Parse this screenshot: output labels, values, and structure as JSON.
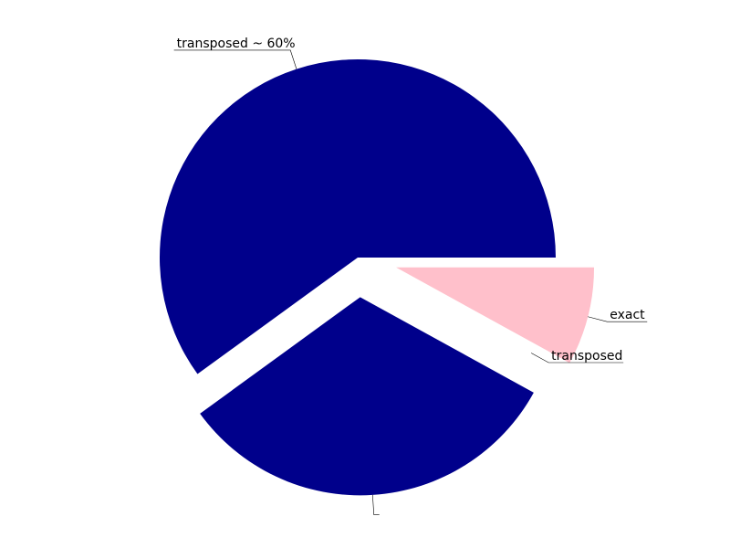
{
  "chart_data": {
    "type": "pie",
    "title": "",
    "start_angle_deg": 0,
    "direction": "counterclockwise",
    "slices": [
      {
        "label": "transposed ~ 60%",
        "value": 60,
        "color": "#00008B",
        "explode": 0.0,
        "label_shown": true
      },
      {
        "label": "",
        "value": 32,
        "color": "#00008B",
        "explode": 0.2,
        "label_shown": false
      },
      {
        "label": "transposed",
        "value": 0,
        "color": "#00008B",
        "explode": 0.0,
        "label_shown": true
      },
      {
        "label": "exact",
        "value": 8,
        "color": "#FFC0CB",
        "explode": 0.2,
        "label_shown": true
      }
    ],
    "legend": "none",
    "grid": false
  }
}
